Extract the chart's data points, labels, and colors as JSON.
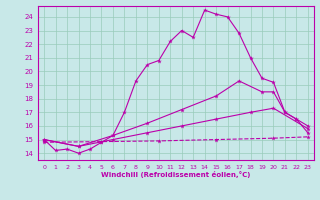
{
  "xlabel": "Windchill (Refroidissement éolien,°C)",
  "xlim": [
    -0.5,
    23.5
  ],
  "ylim": [
    13.5,
    24.8
  ],
  "yticks": [
    14,
    15,
    16,
    17,
    18,
    19,
    20,
    21,
    22,
    23,
    24
  ],
  "xticks": [
    0,
    1,
    2,
    3,
    4,
    5,
    6,
    7,
    8,
    9,
    10,
    11,
    12,
    13,
    14,
    15,
    16,
    17,
    18,
    19,
    20,
    21,
    22,
    23
  ],
  "bg_color": "#c8e8e8",
  "line_color": "#bb00aa",
  "grid_color": "#99ccbb",
  "lines": [
    {
      "x": [
        0,
        1,
        2,
        3,
        4,
        5,
        6,
        7,
        8,
        9,
        10,
        11,
        12,
        13,
        14,
        15,
        16,
        17,
        18,
        19,
        20,
        21,
        22,
        23
      ],
      "y": [
        15.0,
        14.2,
        14.3,
        14.0,
        14.3,
        14.8,
        15.3,
        17.0,
        19.3,
        20.5,
        20.8,
        22.2,
        23.0,
        22.5,
        24.5,
        24.2,
        24.0,
        22.8,
        21.0,
        19.5,
        19.2,
        17.0,
        16.5,
        15.5
      ],
      "dashed": false
    },
    {
      "x": [
        0,
        3,
        6,
        9,
        12,
        15,
        17,
        19,
        20,
        21,
        22,
        23
      ],
      "y": [
        15.0,
        14.5,
        15.3,
        16.2,
        17.2,
        18.2,
        19.3,
        18.5,
        18.5,
        17.0,
        16.5,
        16.0
      ],
      "dashed": false
    },
    {
      "x": [
        0,
        3,
        6,
        9,
        12,
        15,
        18,
        20,
        23
      ],
      "y": [
        15.0,
        14.5,
        15.0,
        15.5,
        16.0,
        16.5,
        17.0,
        17.3,
        15.8
      ],
      "dashed": false
    },
    {
      "x": [
        0,
        5,
        10,
        15,
        20,
        23
      ],
      "y": [
        14.8,
        14.85,
        14.9,
        15.0,
        15.1,
        15.2
      ],
      "dashed": true
    }
  ]
}
